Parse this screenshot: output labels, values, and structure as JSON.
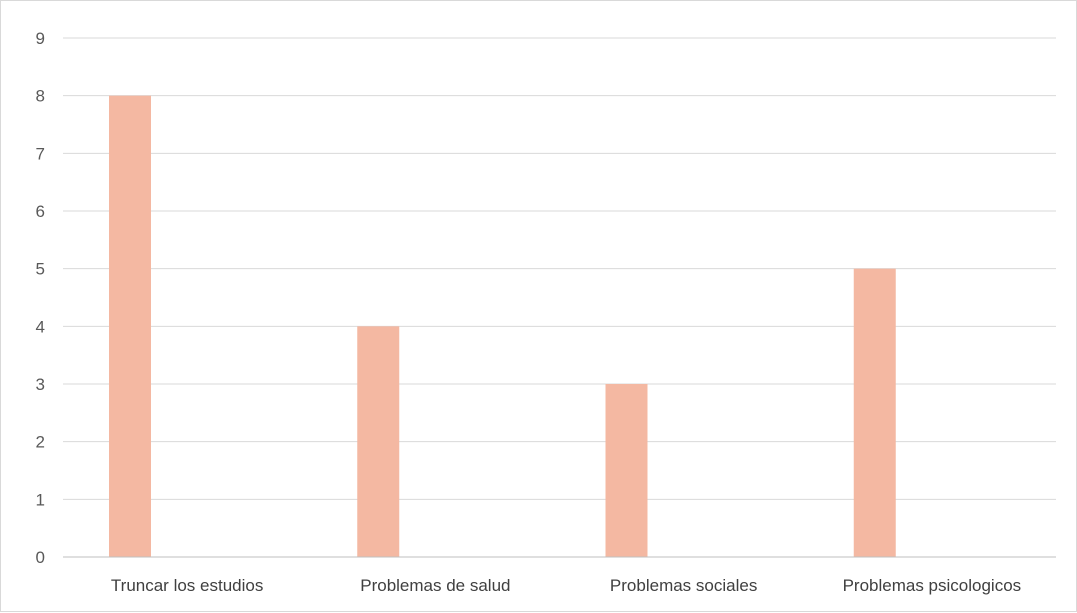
{
  "chart_data": {
    "type": "bar",
    "title": "",
    "xlabel": "",
    "ylabel": "",
    "categories": [
      "Truncar los estudios",
      "Problemas de salud",
      "Problemas sociales",
      "Problemas psicologicos"
    ],
    "values": [
      8,
      4,
      3,
      5
    ],
    "ylim": [
      0,
      9
    ],
    "yticks": [
      0,
      1,
      2,
      3,
      4,
      5,
      6,
      7,
      8,
      9
    ],
    "grid": true,
    "legend": "none",
    "colors": {
      "bar": "#f4b8a2",
      "grid": "#d9d9d9",
      "axis": "#bfbfbf",
      "tick_text": "#595959",
      "category_text": "#404040"
    }
  }
}
